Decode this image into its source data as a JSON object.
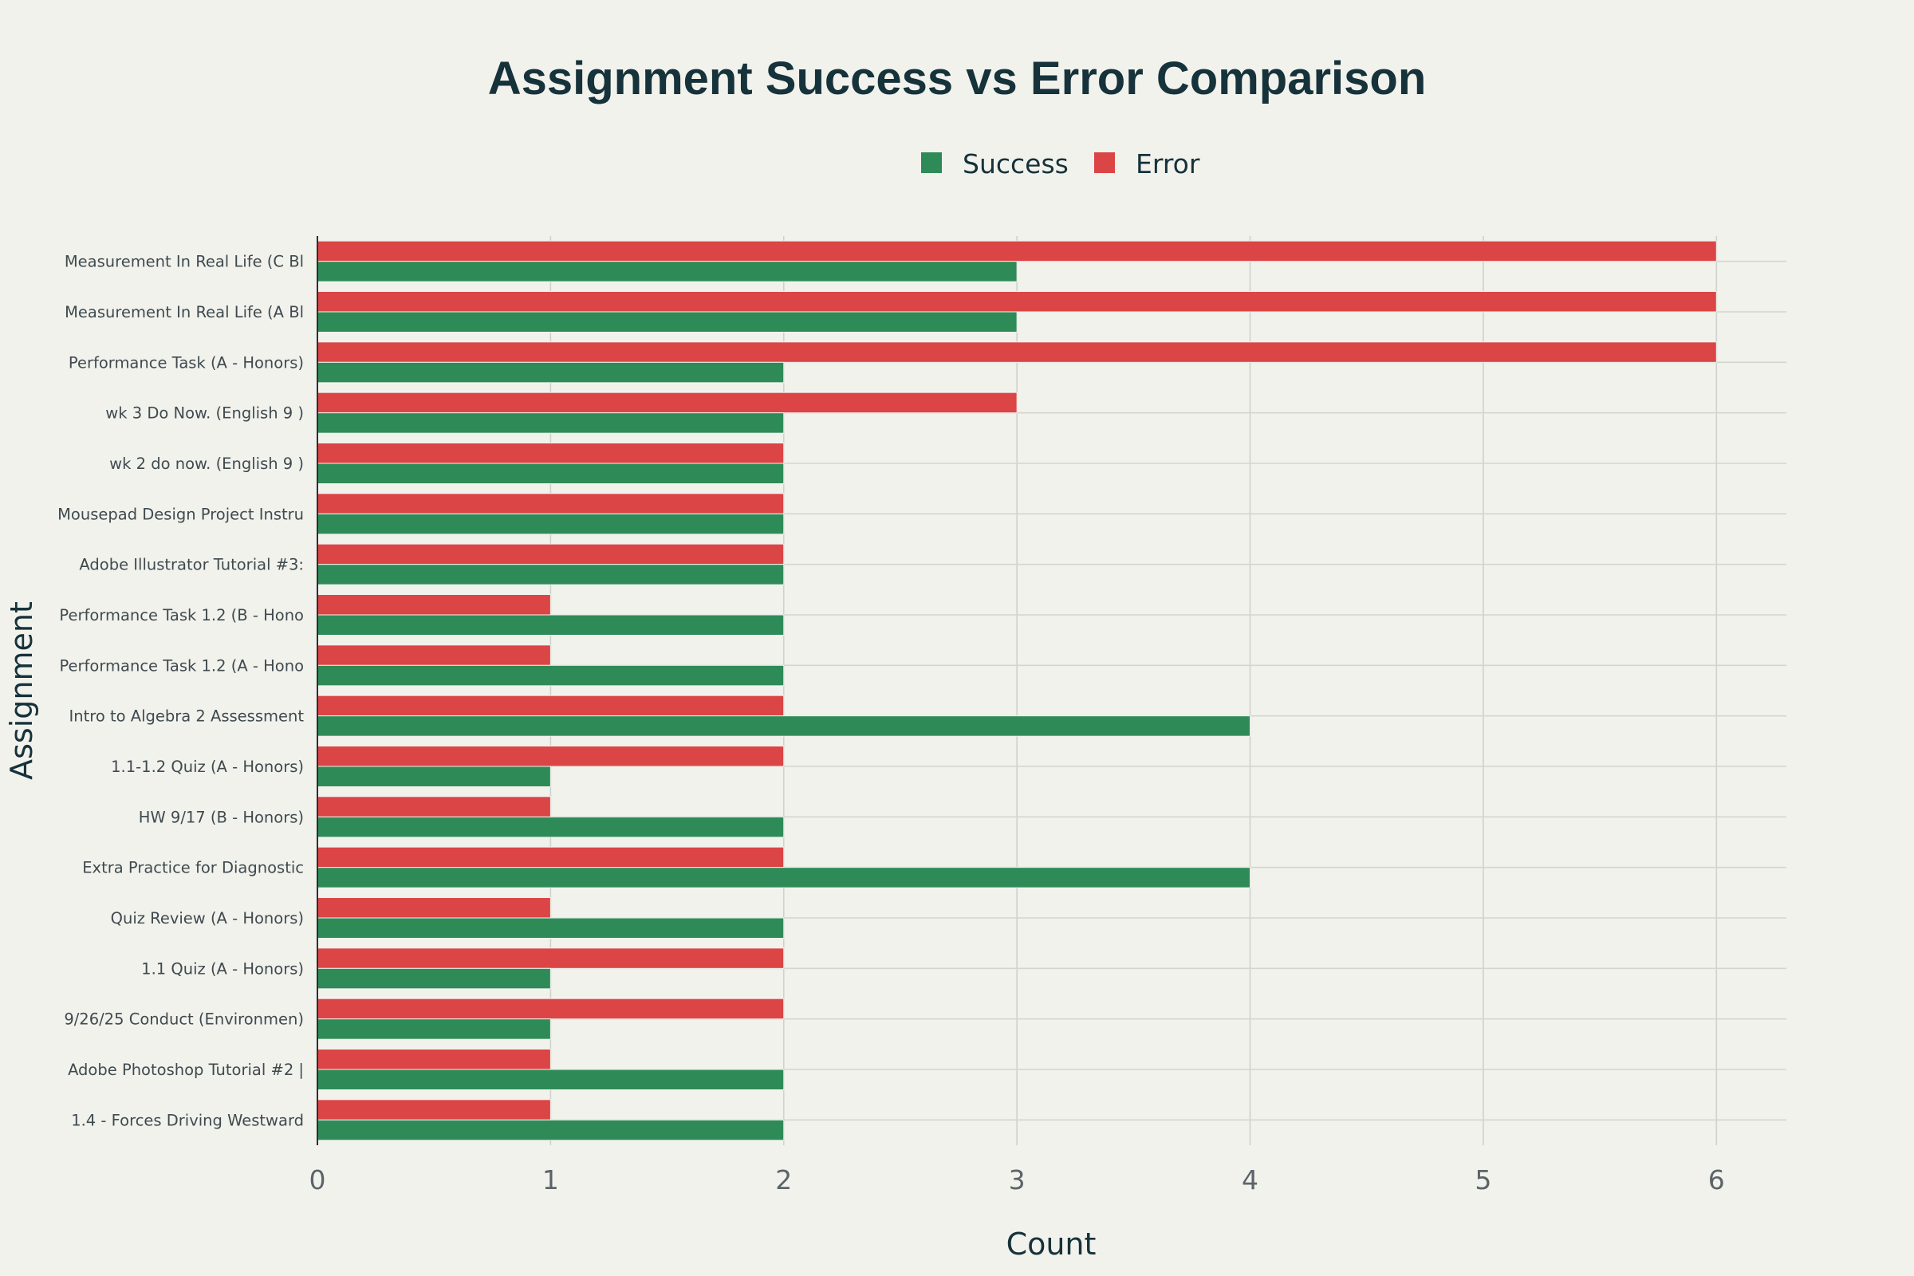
{
  "chart_data": {
    "type": "bar",
    "orientation": "horizontal",
    "title": "Assignment Success vs Error Comparison",
    "xlabel": "Count",
    "ylabel": "Assignment",
    "xlim": [
      0,
      6.3
    ],
    "x_ticks": [
      0,
      1,
      2,
      3,
      4,
      5,
      6
    ],
    "grid": true,
    "legend_position": "top-center",
    "categories": [
      "Measurement In Real Life (C Bl",
      "Measurement In Real Life (A Bl",
      "Performance Task (A - Honors)",
      "wk 3 Do Now. (English 9 )",
      "wk 2 do now. (English 9 )",
      "Mousepad Design Project Instru",
      "Adobe Illustrator Tutorial #3:",
      "Performance Task 1.2 (B - Hono",
      "Performance Task 1.2 (A - Hono",
      "Intro to Algebra 2 Assessment ",
      "1.1-1.2 Quiz (A - Honors)",
      "HW 9/17 (B - Honors)",
      "Extra Practice for Diagnostic ",
      "Quiz Review (A - Honors)",
      "1.1 Quiz (A - Honors)",
      "9/26/25 Conduct (Environmen)",
      "Adobe Photoshop Tutorial #2 |",
      "1.4 - Forces Driving Westward "
    ],
    "series": [
      {
        "name": "Success",
        "color": "#2e8b57",
        "values": [
          3,
          3,
          2,
          2,
          2,
          2,
          2,
          2,
          2,
          4,
          1,
          2,
          4,
          2,
          1,
          1,
          2,
          2
        ]
      },
      {
        "name": "Error",
        "color": "#db4545",
        "values": [
          6,
          6,
          6,
          3,
          2,
          2,
          2,
          1,
          1,
          2,
          2,
          1,
          2,
          1,
          2,
          2,
          1,
          1
        ]
      }
    ]
  }
}
